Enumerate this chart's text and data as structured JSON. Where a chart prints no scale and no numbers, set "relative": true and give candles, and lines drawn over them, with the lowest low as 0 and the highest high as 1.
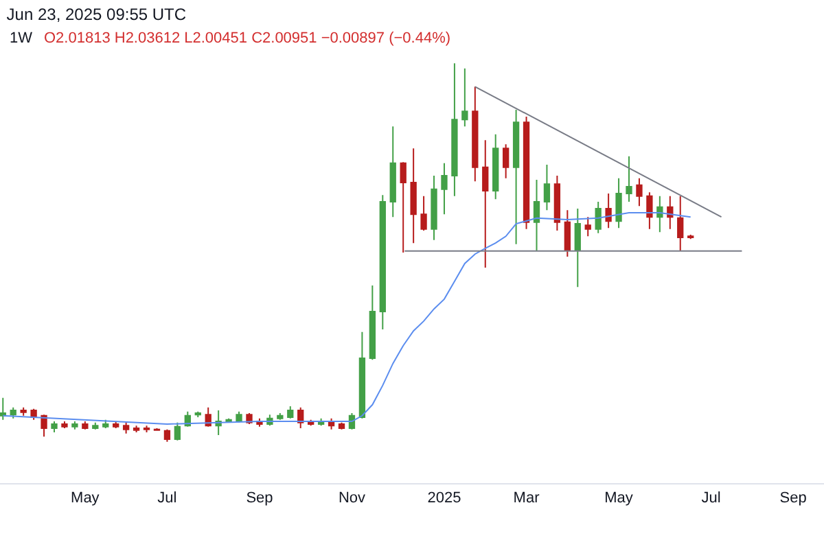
{
  "chart_data": {
    "type": "candlestick",
    "title": "Jun 23, 2025 09:55 UTC",
    "subtitle": "1W",
    "annotations": [
      "O2.01813 H2.03612 L2.00451 C2.00951 −0.00897 (−0.44%)"
    ],
    "relative": true,
    "colors": [
      "#43a047",
      "#43a047",
      "#b71c1c",
      "#b71c1c",
      "#b71c1c",
      "#43a047",
      "#b71c1c",
      "#43a047",
      "#b71c1c",
      "#43a047",
      "#43a047",
      "#b71c1c",
      "#b71c1c",
      "#b71c1c",
      "#b71c1c",
      "#b71c1c",
      "#b71c1c",
      "#43a047",
      "#43a047",
      "#43a047",
      "#b71c1c",
      "#43a047",
      "#43a047",
      "#43a047",
      "#b71c1c",
      "#b71c1c",
      "#43a047",
      "#43a047",
      "#43a047",
      "#b71c1c",
      "#b71c1c",
      "#43a047",
      "#b71c1c",
      "#b71c1c",
      "#43a047",
      "#43a047",
      "#43a047",
      "#43a047",
      "#43a047",
      "#b71c1c",
      "#b71c1c",
      "#b71c1c",
      "#43a047",
      "#43a047",
      "#43a047",
      "#43a047",
      "#b71c1c",
      "#b71c1c",
      "#43a047",
      "#b71c1c",
      "#43a047",
      "#b71c1c",
      "#43a047",
      "#43a047",
      "#b71c1c",
      "#b71c1c",
      "#43a047",
      "#b71c1c",
      "#43a047",
      "#b71c1c",
      "#43a047",
      "#43a047",
      "#b71c1c",
      "#b71c1c",
      "#43a047",
      "#b71c1c",
      "#b71c1c",
      "#b71c1c"
    ],
    "xlim": [
      "2024-03-09",
      "2025-09-22"
    ],
    "xticks": [
      {
        "value": "2024-05-06",
        "label": "May"
      },
      {
        "value": "2024-07-01",
        "label": "Jul"
      },
      {
        "value": "2024-09-02",
        "label": "Sep"
      },
      {
        "value": "2024-11-04",
        "label": "Nov"
      },
      {
        "value": "2025-01-06",
        "label": "2025"
      },
      {
        "value": "2025-03-03",
        "label": "Mar"
      },
      {
        "value": "2025-05-05",
        "label": "May"
      },
      {
        "value": "2025-07-07",
        "label": "Jul"
      },
      {
        "value": "2025-09-01",
        "label": "Sep"
      }
    ],
    "x": [
      "2024-03-11",
      "2024-03-18",
      "2024-03-25",
      "2024-04-01",
      "2024-04-08",
      "2024-04-15",
      "2024-04-22",
      "2024-04-29",
      "2024-05-06",
      "2024-05-13",
      "2024-05-20",
      "2024-05-27",
      "2024-06-03",
      "2024-06-10",
      "2024-06-17",
      "2024-06-24",
      "2024-07-01",
      "2024-07-08",
      "2024-07-15",
      "2024-07-22",
      "2024-07-29",
      "2024-08-05",
      "2024-08-12",
      "2024-08-19",
      "2024-08-26",
      "2024-09-02",
      "2024-09-09",
      "2024-09-16",
      "2024-09-23",
      "2024-09-30",
      "2024-10-07",
      "2024-10-14",
      "2024-10-21",
      "2024-10-28",
      "2024-11-04",
      "2024-11-11",
      "2024-11-18",
      "2024-11-25",
      "2024-12-02",
      "2024-12-09",
      "2024-12-16",
      "2024-12-23",
      "2024-12-30",
      "2025-01-06",
      "2025-01-13",
      "2025-01-20",
      "2025-01-27",
      "2025-02-03",
      "2025-02-10",
      "2025-02-17",
      "2025-02-24",
      "2025-03-03",
      "2025-03-10",
      "2025-03-17",
      "2025-03-24",
      "2025-03-31",
      "2025-04-07",
      "2025-04-14",
      "2025-04-21",
      "2025-04-28",
      "2025-05-05",
      "2025-05-12",
      "2025-05-19",
      "2025-05-26",
      "2025-06-02",
      "2025-06-09",
      "2025-06-16",
      "2025-06-23"
    ],
    "ohlc": [
      [
        0.069,
        0.116,
        0.058,
        0.076
      ],
      [
        0.072,
        0.091,
        0.062,
        0.083
      ],
      [
        0.083,
        0.091,
        0.069,
        0.078
      ],
      [
        0.083,
        0.087,
        0.058,
        0.065
      ],
      [
        0.069,
        0.072,
        0.014,
        0.036
      ],
      [
        0.036,
        0.054,
        0.025,
        0.047
      ],
      [
        0.047,
        0.054,
        0.036,
        0.04
      ],
      [
        0.04,
        0.054,
        0.033,
        0.047
      ],
      [
        0.047,
        0.054,
        0.033,
        0.036
      ],
      [
        0.036,
        0.051,
        0.033,
        0.043
      ],
      [
        0.04,
        0.058,
        0.036,
        0.047
      ],
      [
        0.047,
        0.054,
        0.036,
        0.04
      ],
      [
        0.043,
        0.051,
        0.022,
        0.033
      ],
      [
        0.036,
        0.043,
        0.025,
        0.031
      ],
      [
        0.036,
        0.043,
        0.025,
        0.033
      ],
      [
        0.033,
        0.036,
        0.029,
        0.031
      ],
      [
        0.029,
        0.033,
        0,
        0.007
      ],
      [
        0.007,
        0.051,
        0.004,
        0.04
      ],
      [
        0.043,
        0.08,
        0.04,
        0.069
      ],
      [
        0.072,
        0.08,
        0.065,
        0.076
      ],
      [
        0.072,
        0.091,
        0.04,
        0.043
      ],
      [
        0.043,
        0.083,
        0.018,
        0.054
      ],
      [
        0.054,
        0.062,
        0.051,
        0.058
      ],
      [
        0.054,
        0.08,
        0.051,
        0.072
      ],
      [
        0.072,
        0.076,
        0.047,
        0.051
      ],
      [
        0.054,
        0.062,
        0.04,
        0.047
      ],
      [
        0.047,
        0.072,
        0.043,
        0.062
      ],
      [
        0.062,
        0.076,
        0.058,
        0.069
      ],
      [
        0.065,
        0.094,
        0.062,
        0.083
      ],
      [
        0.083,
        0.091,
        0.036,
        0.051
      ],
      [
        0.051,
        0.058,
        0.043,
        0.047
      ],
      [
        0.047,
        0.062,
        0.043,
        0.054
      ],
      [
        0.054,
        0.062,
        0.033,
        0.043
      ],
      [
        0.047,
        0.051,
        0.033,
        0.036
      ],
      [
        0.036,
        0.076,
        0.033,
        0.069
      ],
      [
        0.065,
        0.29,
        0.062,
        0.221
      ],
      [
        0.221,
        0.413,
        0.217,
        0.344
      ],
      [
        0.344,
        0.652,
        0.297,
        0.634
      ],
      [
        0.634,
        0.833,
        0.594,
        0.736
      ],
      [
        0.736,
        0.739,
        0.5,
        0.685
      ],
      [
        0.685,
        0.775,
        0.525,
        0.601
      ],
      [
        0.601,
        0.649,
        0.558,
        0.562
      ],
      [
        0.562,
        0.703,
        0.533,
        0.667
      ],
      [
        0.667,
        0.736,
        0.601,
        0.703
      ],
      [
        0.703,
        1,
        0.649,
        0.851
      ],
      [
        0.851,
        0.986,
        0.833,
        0.873
      ],
      [
        0.873,
        0.938,
        0.688,
        0.725
      ],
      [
        0.725,
        0.797,
        0.46,
        0.663
      ],
      [
        0.663,
        0.812,
        0.641,
        0.775
      ],
      [
        0.775,
        0.786,
        0.696,
        0.725
      ],
      [
        0.725,
        0.877,
        0.522,
        0.844
      ],
      [
        0.844,
        0.859,
        0.562,
        0.58
      ],
      [
        0.58,
        0.692,
        0.504,
        0.634
      ],
      [
        0.634,
        0.732,
        0.612,
        0.681
      ],
      [
        0.681,
        0.703,
        0.558,
        0.58
      ],
      [
        0.58,
        0.612,
        0.489,
        0.507
      ],
      [
        0.507,
        0.616,
        0.409,
        0.576
      ],
      [
        0.572,
        0.594,
        0.543,
        0.562
      ],
      [
        0.562,
        0.634,
        0.551,
        0.616
      ],
      [
        0.616,
        0.656,
        0.565,
        0.583
      ],
      [
        0.583,
        0.696,
        0.565,
        0.656
      ],
      [
        0.656,
        0.754,
        0.634,
        0.674
      ],
      [
        0.678,
        0.696,
        0.623,
        0.649
      ],
      [
        0.649,
        0.659,
        0.562,
        0.594
      ],
      [
        0.594,
        0.649,
        0.554,
        0.62
      ],
      [
        0.62,
        0.649,
        0.562,
        0.594
      ],
      [
        0.591,
        0.649,
        0.504,
        0.54
      ],
      [
        0.543,
        0.547,
        0.536,
        0.54
      ]
    ],
    "series": [
      {
        "type": "line",
        "color": "#5b8def",
        "x": [
          "2024-03-11",
          "2024-07-01",
          "2024-09-02",
          "2024-10-28",
          "2024-11-04",
          "2024-11-11",
          "2024-11-18",
          "2024-11-25",
          "2024-12-02",
          "2024-12-09",
          "2024-12-16",
          "2024-12-23",
          "2024-12-30",
          "2025-01-06",
          "2025-01-13",
          "2025-01-20",
          "2025-01-27",
          "2025-02-03",
          "2025-02-10",
          "2025-02-17",
          "2025-02-24",
          "2025-03-10",
          "2025-03-31",
          "2025-04-21",
          "2025-05-12",
          "2025-06-02",
          "2025-06-23"
        ],
        "values": [
          0.069,
          0.047,
          0.054,
          0.054,
          0.054,
          0.069,
          0.098,
          0.149,
          0.207,
          0.254,
          0.293,
          0.319,
          0.351,
          0.377,
          0.424,
          0.471,
          0.496,
          0.511,
          0.525,
          0.543,
          0.576,
          0.591,
          0.587,
          0.591,
          0.605,
          0.605,
          0.594
        ]
      },
      {
        "type": "line",
        "color": "#787b86",
        "x": [
          "2024-12-10",
          "2025-07-28"
        ],
        "values": [
          0.504,
          0.504
        ]
      },
      {
        "type": "line",
        "color": "#787b86",
        "x": [
          "2025-01-27",
          "2025-07-14"
        ],
        "values": [
          0.938,
          0.594
        ]
      }
    ]
  }
}
